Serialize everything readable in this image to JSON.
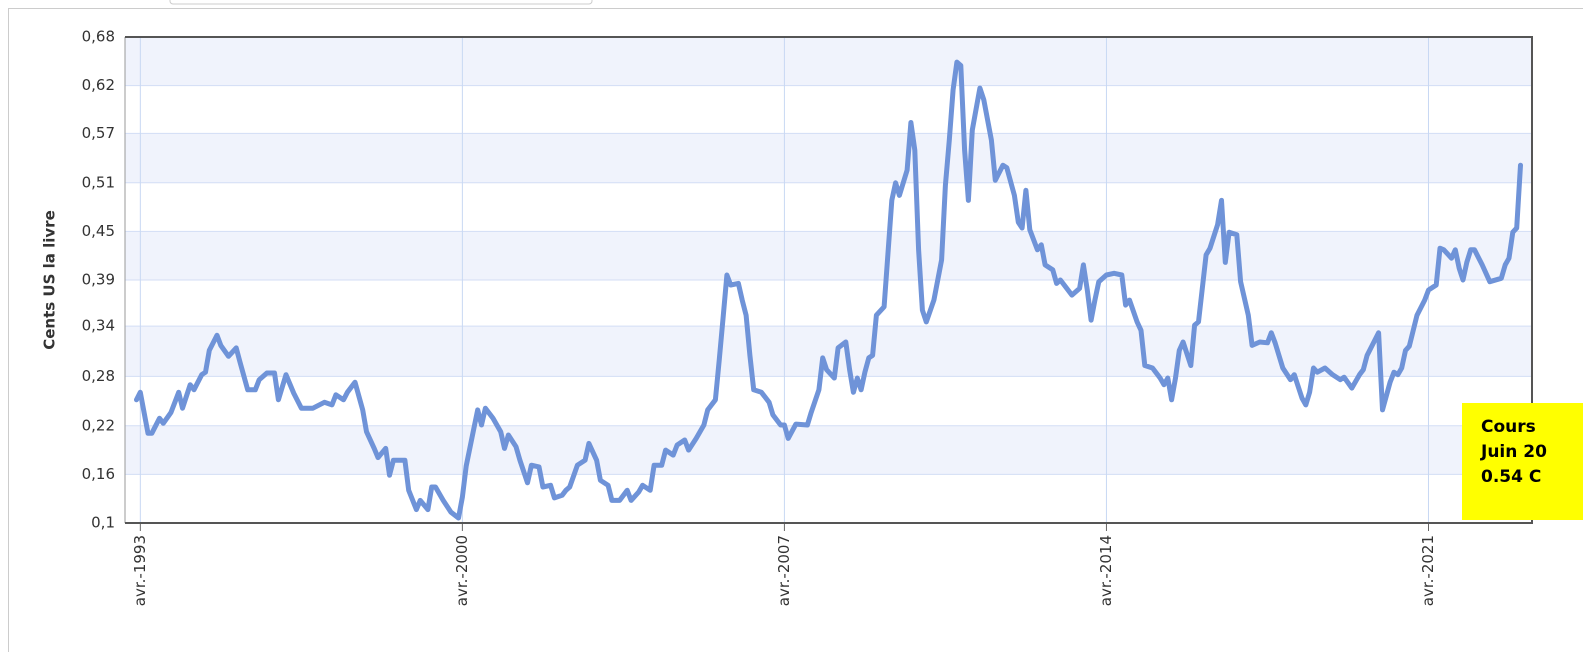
{
  "chart_data": {
    "type": "line",
    "y_label": "Cents US la livre",
    "color": "#6f93d8",
    "grid": true,
    "annotation": [
      "Cours",
      "Juin 20",
      "0.54 C"
    ],
    "xlim": [
      "1992-12",
      "2023-07"
    ],
    "xticks": [
      {
        "value": "1993-04",
        "label": "avr.-1993"
      },
      {
        "value": "2000-04",
        "label": "avr.-2000"
      },
      {
        "value": "2007-04",
        "label": "avr.-2007"
      },
      {
        "value": "2014-04",
        "label": "avr.-2014"
      },
      {
        "value": "2021-04",
        "label": "avr.-2021"
      }
    ],
    "ylim": [
      0.1,
      0.68
    ],
    "yticks": [
      {
        "value": 0.1,
        "label": "0,1"
      },
      {
        "value": 0.158,
        "label": "0,16"
      },
      {
        "value": 0.216,
        "label": "0,22"
      },
      {
        "value": 0.275,
        "label": "0,28"
      },
      {
        "value": 0.335,
        "label": "0,34"
      },
      {
        "value": 0.39,
        "label": "0,39"
      },
      {
        "value": 0.448,
        "label": "0,45"
      },
      {
        "value": 0.506,
        "label": "0,51"
      },
      {
        "value": 0.565,
        "label": "0,57"
      },
      {
        "value": 0.622,
        "label": "0,62"
      },
      {
        "value": 0.68,
        "label": "0,68"
      }
    ],
    "x": [
      "1993-03",
      "1993-04",
      "1993-06",
      "1993-07",
      "1993-09",
      "1993-10",
      "1993-12",
      "1994-02",
      "1994-03",
      "1994-05",
      "1994-06",
      "1994-08",
      "1994-09",
      "1994-10",
      "1994-12",
      "1995-01",
      "1995-03",
      "1995-05",
      "1995-06",
      "1995-08",
      "1995-10",
      "1995-11",
      "1996-01",
      "1996-03",
      "1996-04",
      "1996-06",
      "1996-08",
      "1996-10",
      "1997-01",
      "1997-04",
      "1997-06",
      "1997-07",
      "1997-09",
      "1997-10",
      "1997-12",
      "1998-02",
      "1998-03",
      "1998-05",
      "1998-06",
      "1998-08",
      "1998-09",
      "1998-10",
      "1999-01",
      "1999-02",
      "1999-04",
      "1999-05",
      "1999-07",
      "1999-08",
      "1999-09",
      "1999-11",
      "2000-01",
      "2000-03",
      "2000-04",
      "2000-05",
      "2000-07",
      "2000-08",
      "2000-09",
      "2000-10",
      "2000-12",
      "2001-02",
      "2001-03",
      "2001-04",
      "2001-06",
      "2001-07",
      "2001-09",
      "2001-10",
      "2001-12",
      "2002-01",
      "2002-03",
      "2002-04",
      "2002-06",
      "2002-07",
      "2002-08",
      "2002-10",
      "2002-12",
      "2003-01",
      "2003-03",
      "2003-04",
      "2003-06",
      "2003-07",
      "2003-09",
      "2003-11",
      "2003-12",
      "2004-02",
      "2004-03",
      "2004-05",
      "2004-06",
      "2004-08",
      "2004-09",
      "2004-11",
      "2004-12",
      "2005-02",
      "2005-03",
      "2005-05",
      "2005-07",
      "2005-08",
      "2005-10",
      "2005-11",
      "2005-12",
      "2006-01",
      "2006-02",
      "2006-04",
      "2006-05",
      "2006-06",
      "2006-07",
      "2006-08",
      "2006-10",
      "2006-12",
      "2007-01",
      "2007-03",
      "2007-04",
      "2007-05",
      "2007-07",
      "2007-10",
      "2007-11",
      "2008-01",
      "2008-02",
      "2008-03",
      "2008-05",
      "2008-06",
      "2008-08",
      "2008-09",
      "2008-10",
      "2008-11",
      "2008-12",
      "2009-01",
      "2009-02",
      "2009-03",
      "2009-04",
      "2009-06",
      "2009-08",
      "2009-09",
      "2009-10",
      "2009-12",
      "2010-01",
      "2010-02",
      "2010-03",
      "2010-04",
      "2010-05",
      "2010-07",
      "2010-09",
      "2010-10",
      "2010-11",
      "2010-12",
      "2011-01",
      "2011-02",
      "2011-03",
      "2011-04",
      "2011-05",
      "2011-07",
      "2011-08",
      "2011-10",
      "2011-11",
      "2012-01",
      "2012-02",
      "2012-04",
      "2012-05",
      "2012-06",
      "2012-07",
      "2012-08",
      "2012-10",
      "2012-11",
      "2012-12",
      "2013-02",
      "2013-03",
      "2013-04",
      "2013-06",
      "2013-07",
      "2013-09",
      "2013-10",
      "2013-11",
      "2013-12",
      "2014-01",
      "2014-02",
      "2014-04",
      "2014-06",
      "2014-08",
      "2014-09",
      "2014-10",
      "2014-12",
      "2015-01",
      "2015-02",
      "2015-04",
      "2015-06",
      "2015-07",
      "2015-08",
      "2015-09",
      "2015-10",
      "2015-11",
      "2015-12",
      "2016-02",
      "2016-03",
      "2016-04",
      "2016-06",
      "2016-07",
      "2016-09",
      "2016-10",
      "2016-11",
      "2016-12",
      "2017-02",
      "2017-03",
      "2017-05",
      "2017-06",
      "2017-08",
      "2017-10",
      "2017-11",
      "2017-12",
      "2018-02",
      "2018-04",
      "2018-05",
      "2018-07",
      "2018-08",
      "2018-09",
      "2018-10",
      "2018-11",
      "2019-01",
      "2019-03",
      "2019-05",
      "2019-06",
      "2019-08",
      "2019-10",
      "2019-11",
      "2019-12",
      "2020-02",
      "2020-03",
      "2020-04",
      "2020-06",
      "2020-07",
      "2020-08",
      "2020-09",
      "2020-10",
      "2020-11",
      "2021-01",
      "2021-03",
      "2021-04",
      "2021-06",
      "2021-07",
      "2021-08",
      "2021-10",
      "2021-11",
      "2021-12",
      "2022-01",
      "2022-02",
      "2022-03",
      "2022-04",
      "2022-06",
      "2022-08",
      "2022-11",
      "2022-12",
      "2023-01",
      "2023-02",
      "2023-03",
      "2023-04"
    ],
    "values": [
      0.247,
      0.256,
      0.207,
      0.207,
      0.225,
      0.219,
      0.232,
      0.256,
      0.237,
      0.265,
      0.259,
      0.277,
      0.28,
      0.306,
      0.324,
      0.312,
      0.299,
      0.309,
      0.292,
      0.259,
      0.259,
      0.271,
      0.279,
      0.279,
      0.247,
      0.277,
      0.255,
      0.237,
      0.237,
      0.244,
      0.241,
      0.253,
      0.247,
      0.256,
      0.268,
      0.235,
      0.209,
      0.189,
      0.178,
      0.189,
      0.157,
      0.175,
      0.175,
      0.139,
      0.116,
      0.127,
      0.116,
      0.143,
      0.143,
      0.127,
      0.113,
      0.106,
      0.131,
      0.168,
      0.213,
      0.235,
      0.217,
      0.237,
      0.225,
      0.209,
      0.189,
      0.205,
      0.191,
      0.175,
      0.148,
      0.169,
      0.167,
      0.143,
      0.145,
      0.13,
      0.133,
      0.139,
      0.143,
      0.169,
      0.175,
      0.195,
      0.175,
      0.151,
      0.145,
      0.127,
      0.127,
      0.139,
      0.127,
      0.137,
      0.145,
      0.139,
      0.169,
      0.169,
      0.187,
      0.181,
      0.193,
      0.199,
      0.187,
      0.201,
      0.217,
      0.235,
      0.247,
      0.294,
      0.345,
      0.396,
      0.384,
      0.386,
      0.366,
      0.348,
      0.3,
      0.259,
      0.256,
      0.244,
      0.229,
      0.217,
      0.217,
      0.201,
      0.218,
      0.217,
      0.232,
      0.259,
      0.297,
      0.283,
      0.273,
      0.309,
      0.316,
      0.283,
      0.256,
      0.273,
      0.259,
      0.28,
      0.297,
      0.3,
      0.348,
      0.358,
      0.485,
      0.506,
      0.491,
      0.521,
      0.578,
      0.545,
      0.426,
      0.354,
      0.34,
      0.366,
      0.414,
      0.503,
      0.557,
      0.617,
      0.65,
      0.646,
      0.545,
      0.485,
      0.569,
      0.619,
      0.605,
      0.557,
      0.509,
      0.527,
      0.524,
      0.491,
      0.459,
      0.452,
      0.497,
      0.45,
      0.426,
      0.432,
      0.408,
      0.402,
      0.386,
      0.39,
      0.378,
      0.372,
      0.38,
      0.408,
      0.378,
      0.342,
      0.366,
      0.388,
      0.396,
      0.398,
      0.396,
      0.36,
      0.366,
      0.34,
      0.33,
      0.288,
      0.285,
      0.273,
      0.265,
      0.273,
      0.247,
      0.273,
      0.306,
      0.316,
      0.288,
      0.336,
      0.34,
      0.42,
      0.428,
      0.456,
      0.485,
      0.411,
      0.447,
      0.444,
      0.388,
      0.348,
      0.312,
      0.316,
      0.315,
      0.327,
      0.315,
      0.285,
      0.271,
      0.277,
      0.249,
      0.241,
      0.256,
      0.285,
      0.28,
      0.285,
      0.277,
      0.271,
      0.274,
      0.261,
      0.277,
      0.283,
      0.3,
      0.318,
      0.327,
      0.235,
      0.268,
      0.28,
      0.277,
      0.285,
      0.306,
      0.311,
      0.348,
      0.366,
      0.378,
      0.384,
      0.428,
      0.426,
      0.416,
      0.426,
      0.404,
      0.39,
      0.411,
      0.426,
      0.426,
      0.408,
      0.388,
      0.392,
      0.408,
      0.416,
      0.447,
      0.452,
      0.527
    ]
  }
}
